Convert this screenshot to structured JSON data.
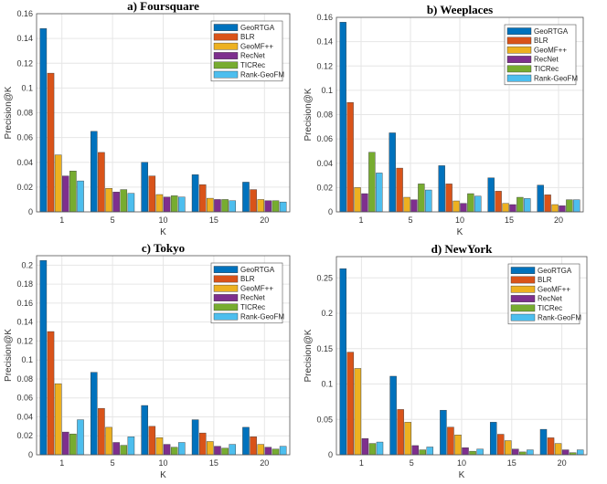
{
  "chart_data": [
    {
      "type": "bar",
      "title": "a) Foursquare",
      "xlabel": "K",
      "ylabel": "Precision@K",
      "categories": [
        "1",
        "5",
        "10",
        "15",
        "20"
      ],
      "ylim": [
        0,
        0.16
      ],
      "yticks": [
        0,
        0.02,
        0.04,
        0.06,
        0.08,
        0.1,
        0.12,
        0.14,
        0.16
      ],
      "grid": true,
      "legend_position": "top-right",
      "series": [
        {
          "name": "GeoRTGA",
          "color": "#0072BD",
          "values": [
            0.148,
            0.065,
            0.04,
            0.03,
            0.024
          ]
        },
        {
          "name": "BLR",
          "color": "#D95319",
          "values": [
            0.112,
            0.048,
            0.029,
            0.022,
            0.018
          ]
        },
        {
          "name": "GeoMF++",
          "color": "#EDB120",
          "values": [
            0.046,
            0.019,
            0.014,
            0.011,
            0.01
          ]
        },
        {
          "name": "RecNet",
          "color": "#7E2F8E",
          "values": [
            0.029,
            0.016,
            0.012,
            0.01,
            0.009
          ]
        },
        {
          "name": "TICRec",
          "color": "#77AC30",
          "values": [
            0.033,
            0.018,
            0.013,
            0.01,
            0.009
          ]
        },
        {
          "name": "Rank-GeoFM",
          "color": "#4DBEEE",
          "values": [
            0.025,
            0.015,
            0.012,
            0.009,
            0.008
          ]
        }
      ]
    },
    {
      "type": "bar",
      "title": "b) Weeplaces",
      "xlabel": "K",
      "ylabel": "Precision@K",
      "categories": [
        "1",
        "5",
        "10",
        "15",
        "20"
      ],
      "ylim": [
        0,
        0.16
      ],
      "yticks": [
        0,
        0.02,
        0.04,
        0.06,
        0.08,
        0.1,
        0.12,
        0.14,
        0.16
      ],
      "grid": true,
      "legend_position": "top-right",
      "series": [
        {
          "name": "GeoRTGA",
          "color": "#0072BD",
          "values": [
            0.156,
            0.065,
            0.038,
            0.028,
            0.022
          ]
        },
        {
          "name": "BLR",
          "color": "#D95319",
          "values": [
            0.09,
            0.036,
            0.023,
            0.017,
            0.014
          ]
        },
        {
          "name": "GeoMF++",
          "color": "#EDB120",
          "values": [
            0.02,
            0.012,
            0.009,
            0.007,
            0.006
          ]
        },
        {
          "name": "RecNet",
          "color": "#7E2F8E",
          "values": [
            0.015,
            0.01,
            0.007,
            0.006,
            0.005
          ]
        },
        {
          "name": "TICRec",
          "color": "#77AC30",
          "values": [
            0.049,
            0.023,
            0.015,
            0.012,
            0.01
          ]
        },
        {
          "name": "Rank-GeoFM",
          "color": "#4DBEEE",
          "values": [
            0.032,
            0.018,
            0.013,
            0.011,
            0.01
          ]
        }
      ]
    },
    {
      "type": "bar",
      "title": "c) Tokyo",
      "xlabel": "K",
      "ylabel": "Precision@K",
      "categories": [
        "1",
        "5",
        "10",
        "15",
        "20"
      ],
      "ylim": [
        0,
        0.21
      ],
      "yticks": [
        0,
        0.02,
        0.04,
        0.06,
        0.08,
        0.1,
        0.12,
        0.14,
        0.16,
        0.18,
        0.2
      ],
      "grid": true,
      "legend_position": "top-right",
      "series": [
        {
          "name": "GeoRTGA",
          "color": "#0072BD",
          "values": [
            0.205,
            0.087,
            0.052,
            0.037,
            0.029
          ]
        },
        {
          "name": "BLR",
          "color": "#D95319",
          "values": [
            0.13,
            0.049,
            0.03,
            0.023,
            0.019
          ]
        },
        {
          "name": "GeoMF++",
          "color": "#EDB120",
          "values": [
            0.075,
            0.029,
            0.018,
            0.014,
            0.011
          ]
        },
        {
          "name": "RecNet",
          "color": "#7E2F8E",
          "values": [
            0.024,
            0.013,
            0.011,
            0.009,
            0.008
          ]
        },
        {
          "name": "TICRec",
          "color": "#77AC30",
          "values": [
            0.022,
            0.01,
            0.008,
            0.007,
            0.006
          ]
        },
        {
          "name": "Rank-GeoFM",
          "color": "#4DBEEE",
          "values": [
            0.037,
            0.019,
            0.013,
            0.011,
            0.009
          ]
        }
      ]
    },
    {
      "type": "bar",
      "title": "d) NewYork",
      "xlabel": "K",
      "ylabel": "Precision@K",
      "categories": [
        "1",
        "5",
        "10",
        "15",
        "20"
      ],
      "ylim": [
        0,
        0.28
      ],
      "yticks": [
        0,
        0.05,
        0.1,
        0.15,
        0.2,
        0.25
      ],
      "grid": true,
      "legend_position": "top-right",
      "series": [
        {
          "name": "GeoRTGA",
          "color": "#0072BD",
          "values": [
            0.263,
            0.111,
            0.063,
            0.046,
            0.036
          ]
        },
        {
          "name": "BLR",
          "color": "#D95319",
          "values": [
            0.145,
            0.064,
            0.039,
            0.029,
            0.024
          ]
        },
        {
          "name": "GeoMF++",
          "color": "#EDB120",
          "values": [
            0.122,
            0.046,
            0.028,
            0.02,
            0.016
          ]
        },
        {
          "name": "RecNet",
          "color": "#7E2F8E",
          "values": [
            0.023,
            0.013,
            0.01,
            0.008,
            0.007
          ]
        },
        {
          "name": "TICRec",
          "color": "#77AC30",
          "values": [
            0.016,
            0.007,
            0.005,
            0.004,
            0.003
          ]
        },
        {
          "name": "Rank-GeoFM",
          "color": "#4DBEEE",
          "values": [
            0.018,
            0.011,
            0.008,
            0.007,
            0.007
          ]
        }
      ]
    }
  ]
}
